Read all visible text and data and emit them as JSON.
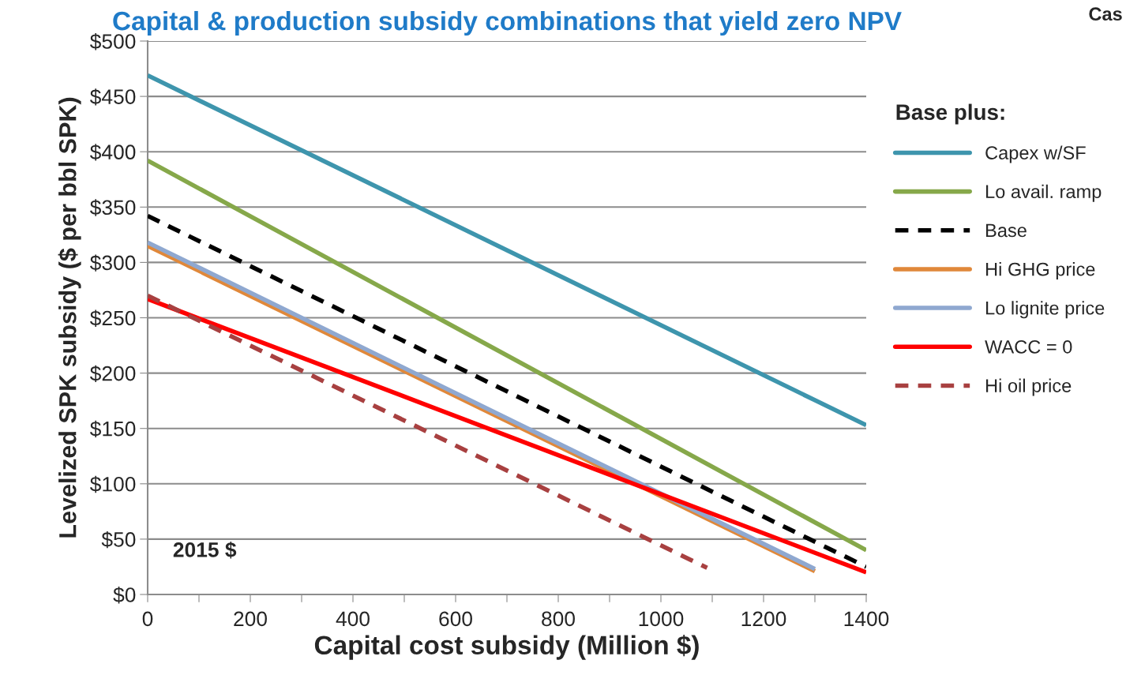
{
  "chart_data": {
    "type": "line",
    "title": "Capital & production subsidy combinations that yield zero NPV",
    "xlabel": "Capital cost subsidy (Million $)",
    "ylabel": "Levelized SPK subsidy ($ per bbl SPK)",
    "legend_title": "Base plus:",
    "series": [
      {
        "name": "Capex w/SF",
        "color": "#3e95ad",
        "x": [
          0,
          1400
        ],
        "values": [
          469,
          153
        ],
        "line_style": "solid"
      },
      {
        "name": "Lo avail. ramp",
        "color": "#86a84a",
        "x": [
          0,
          1400
        ],
        "values": [
          392,
          40
        ],
        "line_style": "solid"
      },
      {
        "name": "Base",
        "color": "#000000",
        "x": [
          0,
          1400
        ],
        "values": [
          342,
          25
        ],
        "line_style": "dashed"
      },
      {
        "name": "Hi GHG price",
        "color": "#e0883a",
        "x": [
          0,
          1300
        ],
        "values": [
          315,
          21
        ],
        "line_style": "solid"
      },
      {
        "name": "Lo lignite price",
        "color": "#8fa8d0",
        "x": [
          0,
          1300
        ],
        "values": [
          318,
          23
        ],
        "line_style": "solid"
      },
      {
        "name": "WACC = 0",
        "color": "#ff0000",
        "x": [
          0,
          1400
        ],
        "values": [
          267,
          20
        ],
        "line_style": "solid"
      },
      {
        "name": "Hi oil price",
        "color": "#a84040",
        "x": [
          0,
          1090
        ],
        "values": [
          270,
          24
        ],
        "line_style": "dashed"
      }
    ],
    "xlim": [
      0,
      1400
    ],
    "ylim": [
      0,
      500
    ],
    "xticks": [
      0,
      {
        "value": 100,
        "label": null
      },
      200,
      {
        "value": 300,
        "label": null
      },
      400,
      {
        "value": 500,
        "label": null
      },
      600,
      {
        "value": 700,
        "label": null
      },
      800,
      {
        "value": 900,
        "label": null
      },
      1000,
      {
        "value": 1100,
        "label": null
      },
      1200,
      {
        "value": 1300,
        "label": null
      },
      1400
    ],
    "yticks": [
      {
        "value": 0,
        "label": "$0"
      },
      {
        "value": 50,
        "label": "$50"
      },
      {
        "value": 100,
        "label": "$100"
      },
      {
        "value": 150,
        "label": "$150"
      },
      {
        "value": 200,
        "label": "$200"
      },
      {
        "value": 250,
        "label": "$250"
      },
      {
        "value": 300,
        "label": "$300"
      },
      {
        "value": 350,
        "label": "$350"
      },
      {
        "value": 400,
        "label": "$400"
      },
      {
        "value": 450,
        "label": "$450"
      },
      {
        "value": 500,
        "label": "$500"
      }
    ],
    "grid": "y",
    "legend": "right",
    "marker": "none",
    "annotations": [
      "2015 $",
      "Cas"
    ]
  }
}
